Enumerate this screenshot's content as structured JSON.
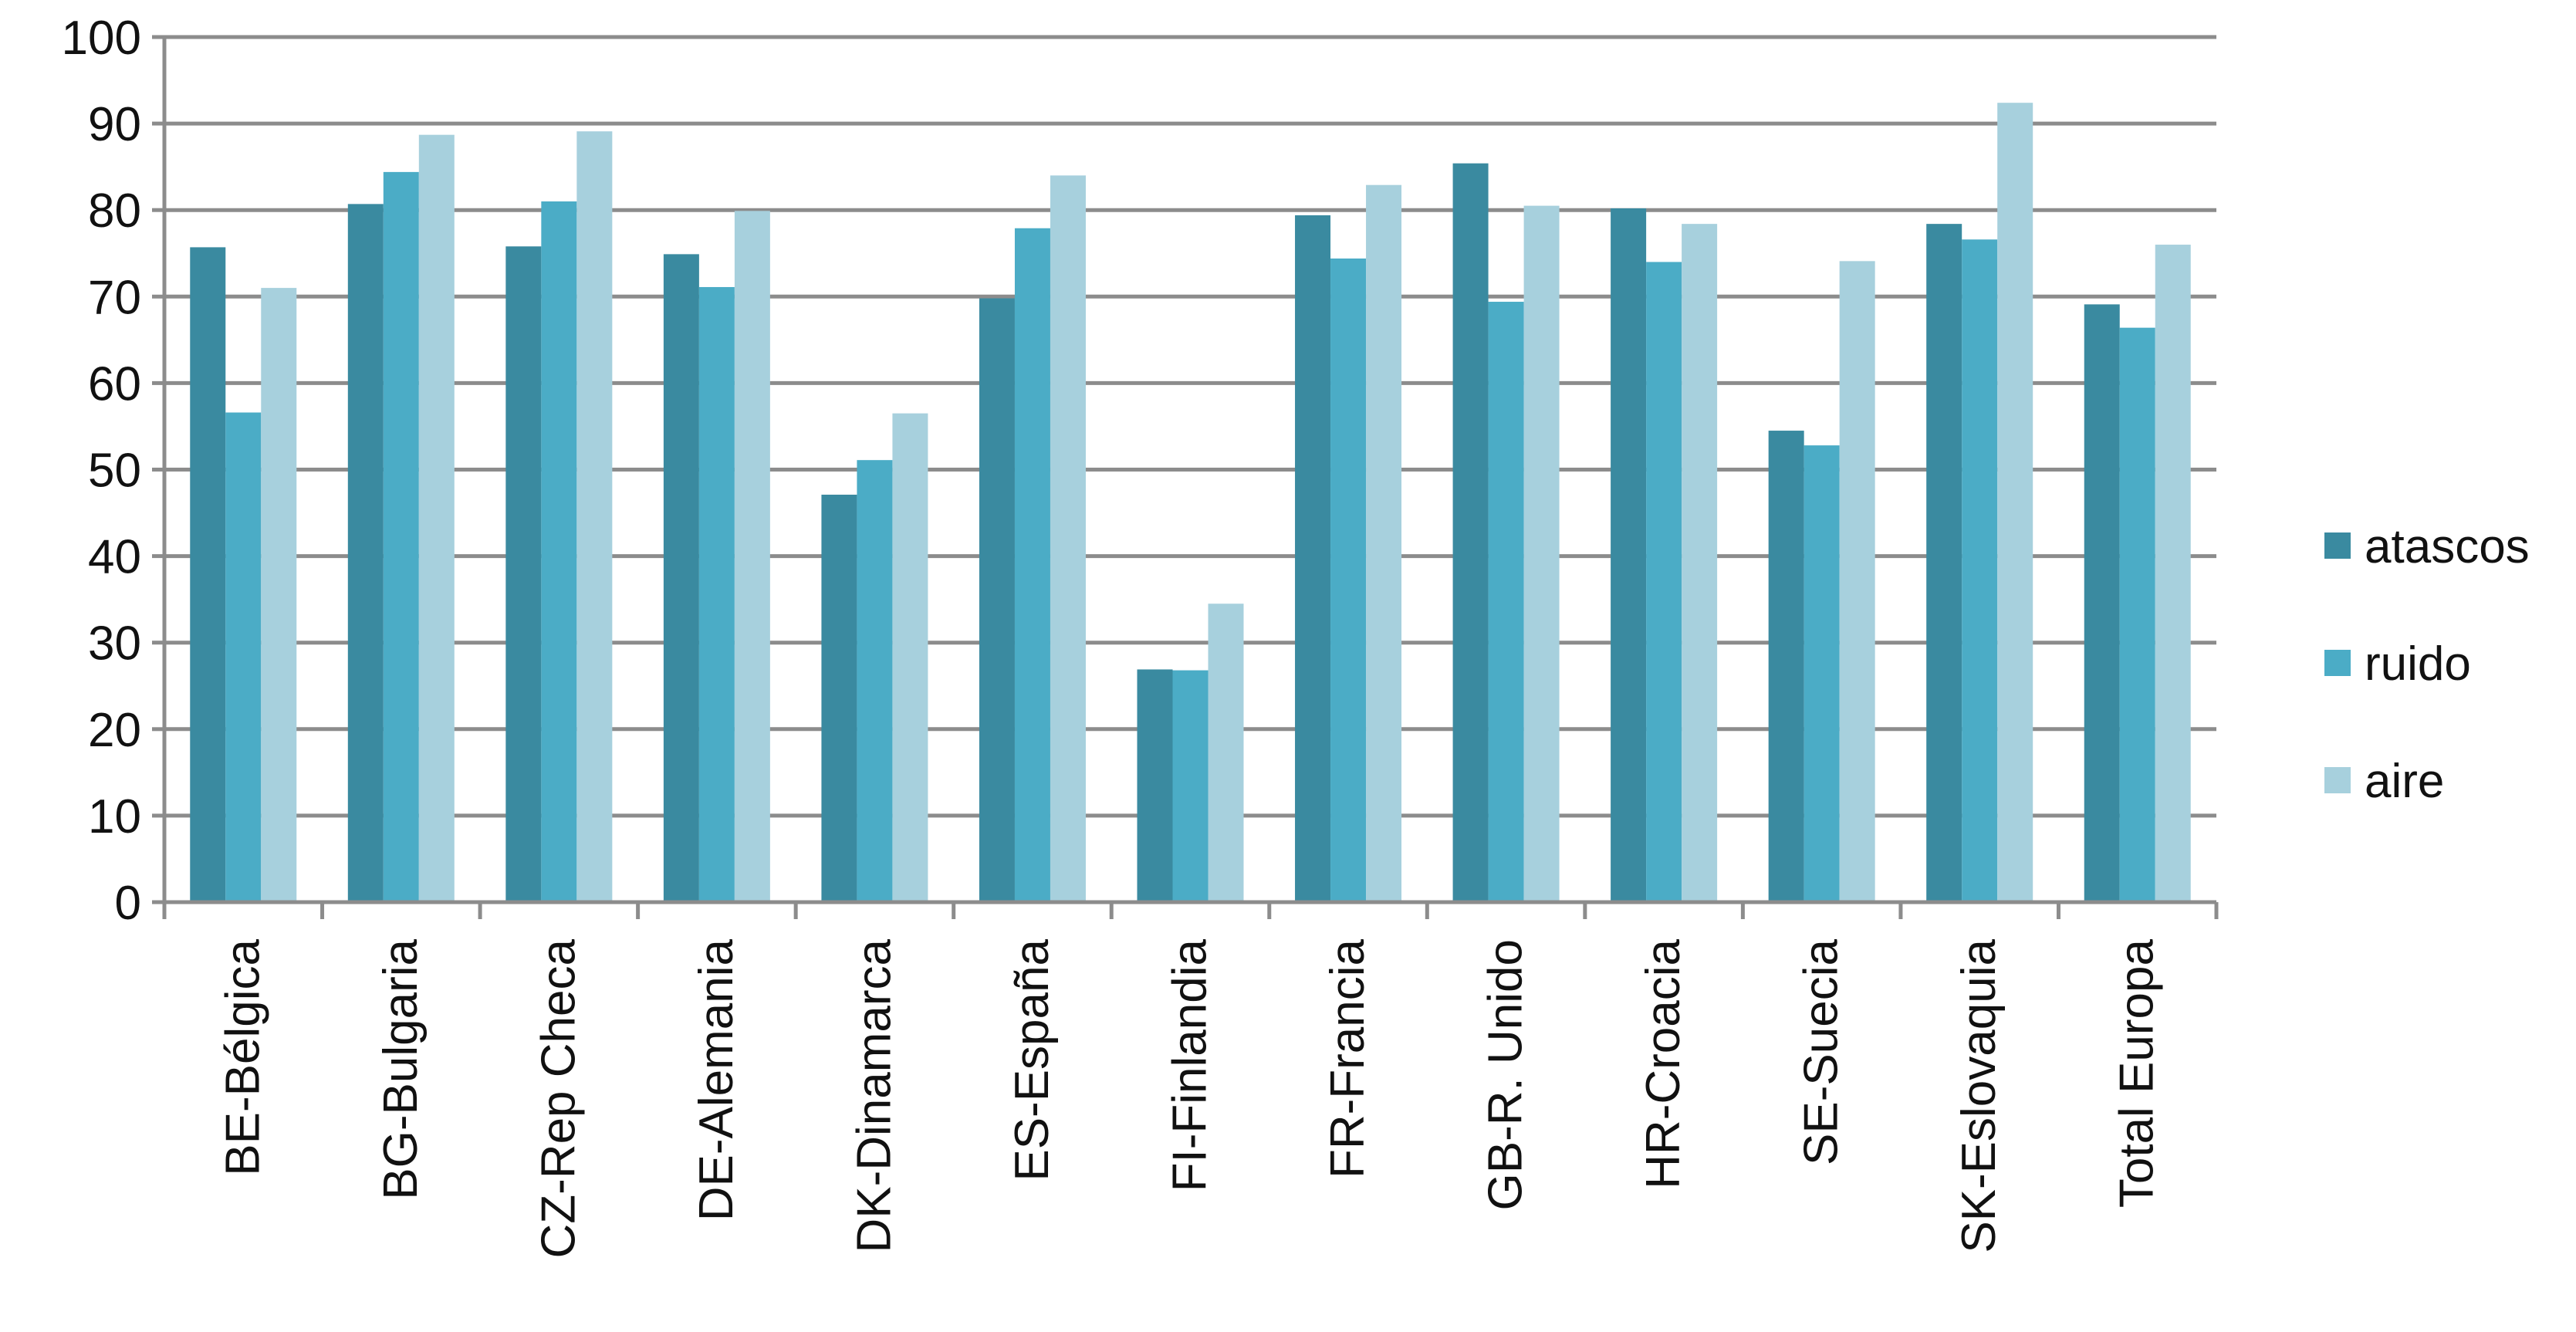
{
  "chart_data": {
    "type": "bar",
    "categories": [
      "BE-Bélgica",
      "BG-Bulgaria",
      "CZ-Rep Checa",
      "DE-Alemania",
      "DK-Dinamarca",
      "ES-España",
      "FI-Finlandia",
      "FR-Francia",
      "GB-R. Unido",
      "HR-Croacia",
      "SE-Suecia",
      "SK-Eslovaquia",
      "Total Europa"
    ],
    "series": [
      {
        "name": "atascos",
        "color": "#3a8aa0",
        "values": [
          75.7,
          80.7,
          75.8,
          74.9,
          47.1,
          69.8,
          26.9,
          79.4,
          85.4,
          80.2,
          54.5,
          78.4,
          69.1
        ]
      },
      {
        "name": "ruido",
        "color": "#4bacc6",
        "values": [
          56.6,
          84.4,
          81.0,
          71.1,
          51.1,
          77.9,
          26.8,
          74.4,
          69.4,
          74.0,
          52.8,
          76.6,
          66.4
        ]
      },
      {
        "name": "aire",
        "color": "#a7d0dd",
        "values": [
          71.0,
          88.7,
          89.1,
          79.9,
          56.5,
          84.0,
          34.5,
          82.9,
          80.5,
          78.4,
          74.1,
          92.4,
          76.0
        ]
      }
    ],
    "ylim": [
      0,
      100
    ],
    "yticks": [
      "0",
      "10",
      "20",
      "30",
      "40",
      "50",
      "60",
      "70",
      "80",
      "90",
      "100"
    ],
    "grid": true,
    "legend_position": "right"
  }
}
